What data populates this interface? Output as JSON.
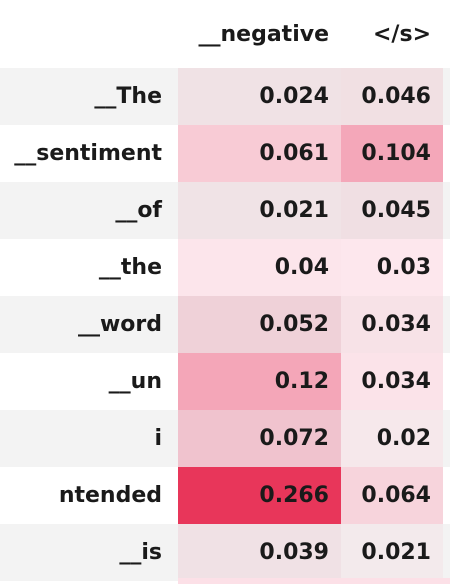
{
  "columns": [
    "__negative",
    "</s>"
  ],
  "rows": [
    {
      "label": "__The",
      "values": [
        "0.024",
        "0.046"
      ],
      "colors": [
        "#f0e2e5",
        "#f1e0e3"
      ]
    },
    {
      "label": "__sentiment",
      "values": [
        "0.061",
        "0.104"
      ],
      "colors": [
        "#f8cbd5",
        "#f4a7b9"
      ]
    },
    {
      "label": "__of",
      "values": [
        "0.021",
        "0.045"
      ],
      "colors": [
        "#f0e3e6",
        "#f0dfe3"
      ]
    },
    {
      "label": "__the",
      "values": [
        "0.04",
        "0.03"
      ],
      "colors": [
        "#fce5eb",
        "#fde7ed"
      ]
    },
    {
      "label": "__word",
      "values": [
        "0.052",
        "0.034"
      ],
      "colors": [
        "#efd1d8",
        "#f7e2e7"
      ]
    },
    {
      "label": "__un",
      "values": [
        "0.12",
        "0.034"
      ],
      "colors": [
        "#f4a6b8",
        "#fbe3e9"
      ]
    },
    {
      "label": "i",
      "values": [
        "0.072",
        "0.02"
      ],
      "colors": [
        "#f0c3ce",
        "#f6e8eb"
      ]
    },
    {
      "label": "ntended",
      "values": [
        "0.266",
        "0.064"
      ],
      "colors": [
        "#e8365a",
        "#f7d4dc"
      ]
    },
    {
      "label": "__is",
      "values": [
        "0.039",
        "0.021"
      ],
      "colors": [
        "#f0e1e5",
        "#f3eaec"
      ]
    }
  ],
  "bottom_partial_colors": [
    "#fce0e7",
    "#fce0e7"
  ]
}
